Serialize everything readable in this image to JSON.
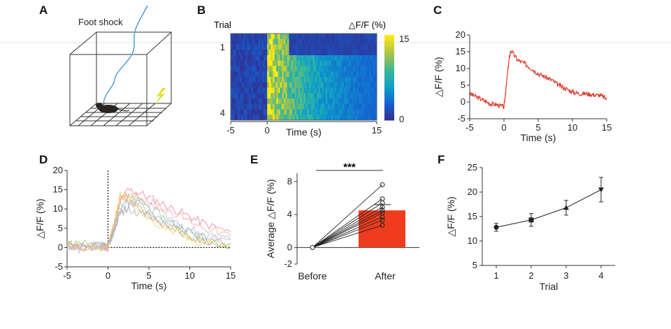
{
  "panels": {
    "A": {
      "letter": "A",
      "label": "Foot shock",
      "colors": {
        "wire": "#5aa5d8",
        "mouse": "#2a2320",
        "bolt": "#e8e040"
      }
    },
    "B": {
      "letter": "B",
      "row_axis_label": "Trial",
      "row_ticks": [
        "1",
        "4"
      ],
      "colorbar_label": "△F/F (%)",
      "colorbar_ticks": [
        "15",
        "0"
      ]
    },
    "C": {
      "letter": "C"
    },
    "D": {
      "letter": "D"
    },
    "E": {
      "letter": "E",
      "significance": "***"
    },
    "F": {
      "letter": "F"
    }
  },
  "chart_data": [
    {
      "id": "B",
      "type": "heatmap",
      "x": [
        -5,
        15
      ],
      "xticks": [
        "-5",
        "0",
        "15"
      ],
      "xlabel": "Time (s)",
      "rows": 4,
      "row_ticks": [
        "1",
        "4"
      ],
      "ylabel": "Trial",
      "colorbar": {
        "label": "△F/F (%)",
        "min": 0,
        "max": 15
      },
      "pre_level": 0.5,
      "peak": 15,
      "post_level_trial1": 1,
      "decay_tau": 7
    },
    {
      "id": "C",
      "type": "line",
      "color": "#e03a2a",
      "x": [
        -5,
        -4,
        -3,
        -2,
        -1,
        0,
        0.3,
        0.7,
        1,
        2,
        3,
        4,
        5,
        6,
        7,
        8,
        9,
        10,
        11,
        12,
        13,
        14,
        15
      ],
      "y": [
        2.5,
        1.5,
        0.5,
        -0.5,
        -0.8,
        -1.5,
        4,
        12,
        15.5,
        12.5,
        11.5,
        10,
        8.5,
        7.5,
        6.5,
        5,
        4,
        3,
        2.5,
        2.5,
        2.2,
        2,
        1
      ],
      "xlim": [
        -5,
        15
      ],
      "ylim": [
        -5,
        20
      ],
      "xticks": [
        "-5",
        "0",
        "5",
        "10",
        "15"
      ],
      "yticks": [
        "-5",
        "0",
        "5",
        "10",
        "15",
        "20"
      ],
      "xlabel": "Time (s)",
      "ylabel": "△F/F (%)"
    },
    {
      "id": "D",
      "type": "line",
      "x": [
        -5,
        -3,
        -1,
        0,
        0.7,
        1.5,
        2.5,
        4,
        6,
        8,
        10,
        12,
        15
      ],
      "series": [
        {
          "color": "#f08cb0",
          "values": [
            0,
            0.5,
            0,
            0.5,
            5,
            12,
            15,
            14,
            12,
            10,
            8,
            6,
            4
          ]
        },
        {
          "color": "#f2a35a",
          "values": [
            1,
            0,
            0.5,
            0,
            6,
            13,
            12,
            10,
            7,
            5,
            3,
            1.5,
            1
          ]
        },
        {
          "color": "#9ad07a",
          "values": [
            0.5,
            1,
            0,
            0.5,
            5,
            11,
            13,
            12,
            9,
            6,
            4,
            2,
            1
          ]
        },
        {
          "color": "#9fc7e8",
          "values": [
            -0.5,
            0.5,
            1,
            0,
            4,
            10,
            12,
            11,
            8,
            6,
            4,
            3,
            2
          ]
        },
        {
          "color": "#c7b6e0",
          "values": [
            0,
            -0.5,
            0.5,
            0,
            4,
            9,
            11,
            12,
            10,
            7,
            5,
            3,
            2
          ]
        },
        {
          "color": "#e8d870",
          "values": [
            0.5,
            0,
            -0.5,
            0.5,
            6,
            14,
            13,
            9,
            6,
            4,
            2,
            1,
            0.5
          ]
        },
        {
          "color": "#f2b0a0",
          "values": [
            0,
            0.5,
            0,
            0,
            5,
            12,
            14,
            13,
            11,
            9,
            7,
            5,
            3
          ]
        },
        {
          "color": "#b0b0b0",
          "values": [
            1,
            0,
            0.5,
            0.5,
            4,
            9,
            10,
            9,
            7,
            5,
            3,
            1,
            0
          ]
        }
      ],
      "xlim": [
        -5,
        15
      ],
      "ylim": [
        -5,
        20
      ],
      "xticks": [
        "-5",
        "0",
        "5",
        "10",
        "15"
      ],
      "yticks": [
        "-5",
        "0",
        "5",
        "10",
        "15",
        "20"
      ],
      "xlabel": "Time (s)",
      "ylabel": "△F/F (%)"
    },
    {
      "id": "E",
      "type": "bar",
      "categories": [
        "Before",
        "After"
      ],
      "bar": {
        "category": "After",
        "value": 4.5,
        "error": 0.7,
        "color": "#f03c1e"
      },
      "paired_before": [
        0,
        0,
        0,
        0,
        0,
        0,
        0,
        0,
        0
      ],
      "paired_after": [
        7.6,
        5.9,
        5.4,
        4.9,
        4.5,
        4.2,
        3.7,
        3.3,
        2.7
      ],
      "ylim": [
        -2,
        9
      ],
      "yticks": [
        "-2",
        "0",
        "4",
        "8"
      ],
      "ylabel": "Average △F/F (%)"
    },
    {
      "id": "F",
      "type": "line",
      "categories": [
        "1",
        "2",
        "3",
        "4"
      ],
      "values": [
        12.8,
        14.3,
        16.8,
        20.5
      ],
      "errors": [
        0.8,
        1.3,
        1.5,
        2.5
      ],
      "markers": [
        "circle",
        "square",
        "triangle-up",
        "triangle-down"
      ],
      "ylim": [
        5,
        25
      ],
      "yticks": [
        "5",
        "10",
        "15",
        "20",
        "25"
      ],
      "xlabel": "Trial",
      "ylabel": "△F/F (%)"
    }
  ]
}
